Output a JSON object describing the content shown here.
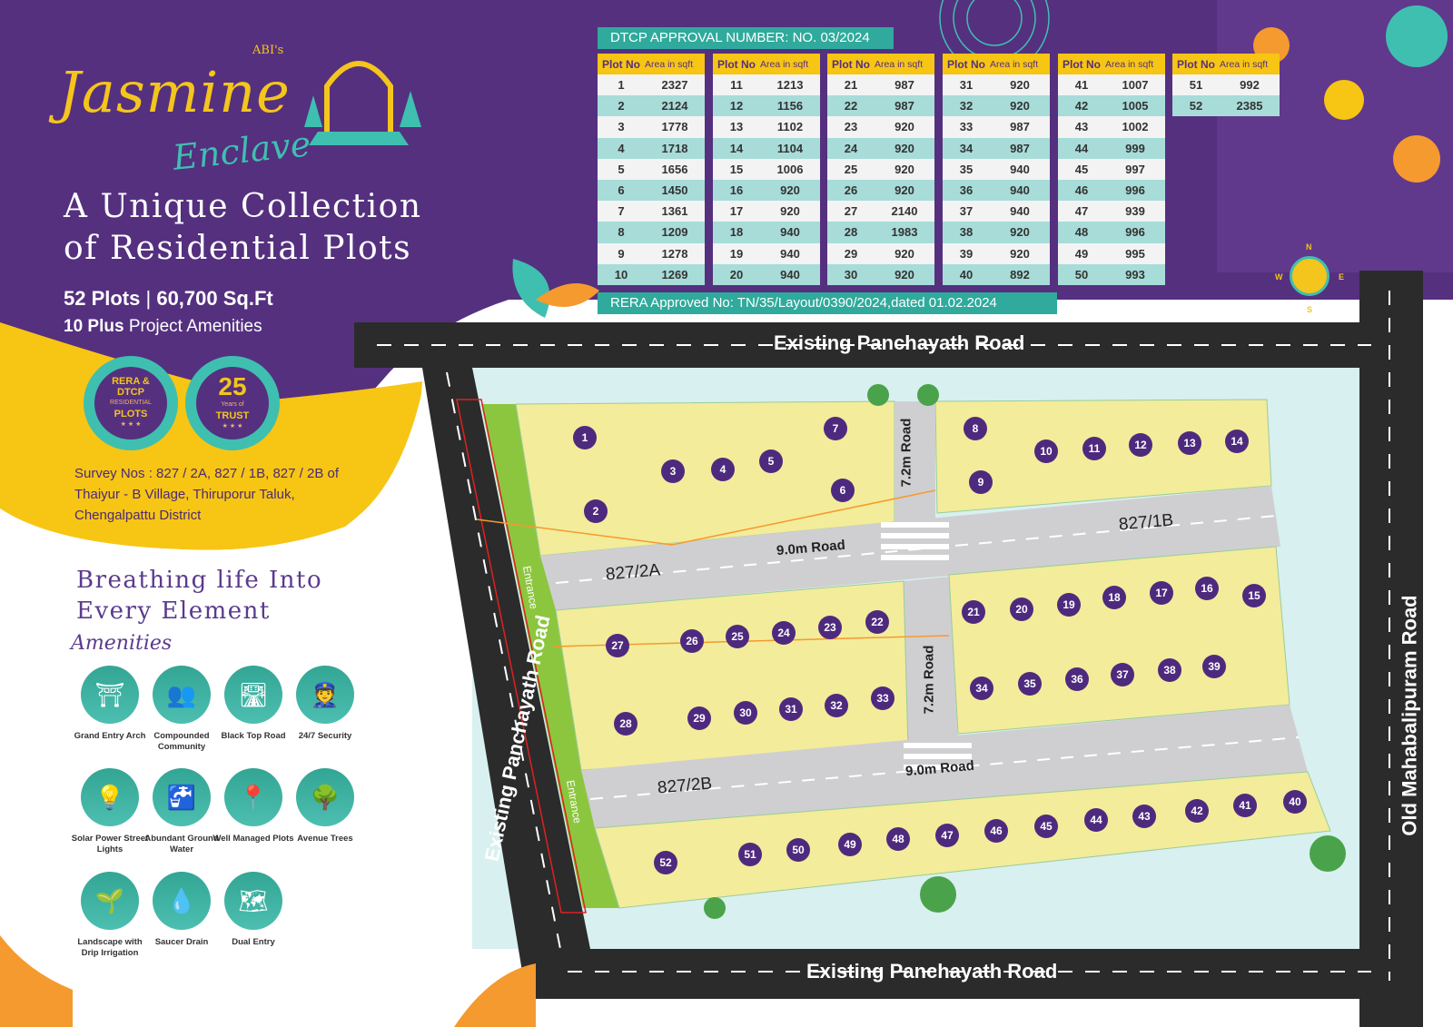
{
  "logo": {
    "brand": "ABI's",
    "name": "Jasmine",
    "sub": "Enclave"
  },
  "tagline": "A Unique Collection of Residential Plots",
  "stats": {
    "plots": "52 Plots",
    "separator": " | ",
    "area": "60,700",
    "area_unit": " Sq.Ft",
    "amenities_bold": "10 Plus",
    "amenities_rest": " Project Amenities"
  },
  "badges": [
    {
      "l1": "RERA &",
      "l2": "DTCP",
      "l3": "RESIDENTIAL",
      "l4": "PLOTS",
      "stars": "★ ★ ★"
    },
    {
      "big": "25",
      "l2": "Years of",
      "l3": "TRUST",
      "stars": "★ ★ ★"
    }
  ],
  "survey": [
    "Survey Nos : 827 / 2A, 827 / 1B,  827 / 2B of",
    "Thaiyur - B Village, Thiruporur Taluk,",
    "Chengalpattu District"
  ],
  "breathing": [
    "Breathing life Into",
    "Every Element"
  ],
  "amenities_title": "Amenities",
  "amenities": [
    {
      "label": "Grand Entry Arch",
      "icon": "arch-icon"
    },
    {
      "label": "Compounded Community",
      "icon": "community-icon"
    },
    {
      "label": "Black Top Road",
      "icon": "road-icon"
    },
    {
      "label": "24/7 Security",
      "icon": "security-guard-icon"
    },
    {
      "label": "Solar Power Street Lights",
      "icon": "solar-light-icon"
    },
    {
      "label": "Abundant Ground Water",
      "icon": "water-tap-icon"
    },
    {
      "label": "Well Managed Plots",
      "icon": "plot-pin-icon"
    },
    {
      "label": "Avenue Trees",
      "icon": "trees-icon"
    },
    {
      "label": "Landscape with Drip Irrigation",
      "icon": "drip-irrigation-icon"
    },
    {
      "label": "Saucer Drain",
      "icon": "drain-icon"
    },
    {
      "label": "Dual Entry",
      "icon": "map-pin-icon"
    }
  ],
  "dtcp": "DTCP APPROVAL NUMBER: NO. 03/2024",
  "rera": "RERA Approved No: TN/35/Layout/0390/2024,dated 01.02.2024",
  "plot_table": {
    "header_plot": "Plot No",
    "header_area": "Area in sqft",
    "columns": [
      [
        [
          "1",
          "2327"
        ],
        [
          "2",
          "2124"
        ],
        [
          "3",
          "1778"
        ],
        [
          "4",
          "1718"
        ],
        [
          "5",
          "1656"
        ],
        [
          "6",
          "1450"
        ],
        [
          "7",
          "1361"
        ],
        [
          "8",
          "1209"
        ],
        [
          "9",
          "1278"
        ],
        [
          "10",
          "1269"
        ]
      ],
      [
        [
          "11",
          "1213"
        ],
        [
          "12",
          "1156"
        ],
        [
          "13",
          "1102"
        ],
        [
          "14",
          "1104"
        ],
        [
          "15",
          "1006"
        ],
        [
          "16",
          "920"
        ],
        [
          "17",
          "920"
        ],
        [
          "18",
          "940"
        ],
        [
          "19",
          "940"
        ],
        [
          "20",
          "940"
        ]
      ],
      [
        [
          "21",
          "987"
        ],
        [
          "22",
          "987"
        ],
        [
          "23",
          "920"
        ],
        [
          "24",
          "920"
        ],
        [
          "25",
          "920"
        ],
        [
          "26",
          "920"
        ],
        [
          "27",
          "2140"
        ],
        [
          "28",
          "1983"
        ],
        [
          "29",
          "920"
        ],
        [
          "30",
          "920"
        ]
      ],
      [
        [
          "31",
          "920"
        ],
        [
          "32",
          "920"
        ],
        [
          "33",
          "987"
        ],
        [
          "34",
          "987"
        ],
        [
          "35",
          "940"
        ],
        [
          "36",
          "940"
        ],
        [
          "37",
          "940"
        ],
        [
          "38",
          "920"
        ],
        [
          "39",
          "920"
        ],
        [
          "40",
          "892"
        ]
      ],
      [
        [
          "41",
          "1007"
        ],
        [
          "42",
          "1005"
        ],
        [
          "43",
          "1002"
        ],
        [
          "44",
          "999"
        ],
        [
          "45",
          "997"
        ],
        [
          "46",
          "996"
        ],
        [
          "47",
          "939"
        ],
        [
          "48",
          "996"
        ],
        [
          "49",
          "995"
        ],
        [
          "50",
          "993"
        ]
      ],
      [
        [
          "51",
          "992"
        ],
        [
          "52",
          "2385"
        ]
      ]
    ]
  },
  "compass": {
    "n": "N",
    "e": "E",
    "s": "S",
    "w": "W"
  },
  "map": {
    "road_top": "Existing Panchayath Road",
    "road_bottom": "Existing Panchayath Road",
    "road_left": "Existing Panchayath Road",
    "road_right": "Old Mahabalipuram Road",
    "road_9m_upper": "9.0m Road",
    "road_9m_lower": "9.0m Road",
    "road_72_upper": "7.2m Road",
    "road_72_lower": "7.2m Road",
    "block_2a": "827/2A",
    "block_1b": "827/1B",
    "block_2b": "827/2B",
    "entrance": "Entrance",
    "plots": [
      "1",
      "2",
      "3",
      "4",
      "5",
      "6",
      "7",
      "8",
      "9",
      "10",
      "11",
      "12",
      "13",
      "14",
      "15",
      "16",
      "17",
      "18",
      "19",
      "20",
      "21",
      "22",
      "23",
      "24",
      "25",
      "26",
      "27",
      "28",
      "29",
      "30",
      "31",
      "32",
      "33",
      "34",
      "35",
      "36",
      "37",
      "38",
      "39",
      "40",
      "41",
      "42",
      "43",
      "44",
      "45",
      "46",
      "47",
      "48",
      "49",
      "50",
      "51",
      "52"
    ]
  },
  "colors": {
    "purple": "#55307f",
    "yellow": "#f7c514",
    "teal": "#2faa9c",
    "plot_fill": "#f3ec9a",
    "road": "#2b2b2b"
  }
}
